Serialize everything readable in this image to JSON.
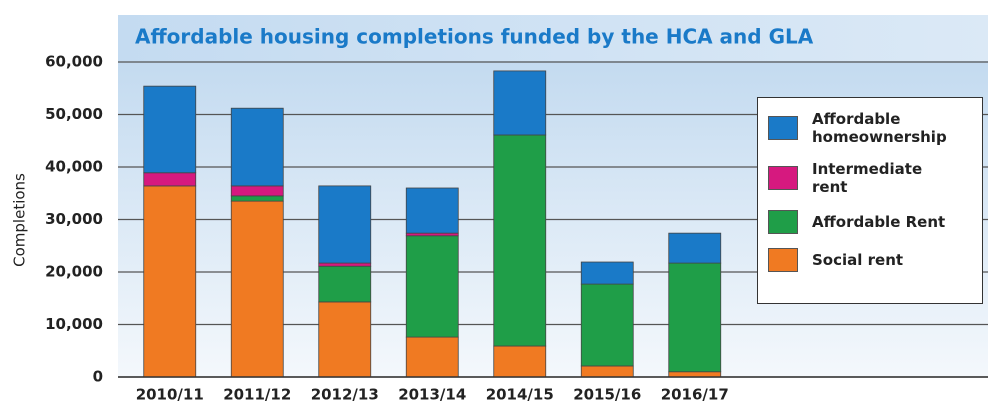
{
  "chart_data": {
    "type": "stacked_bar",
    "title": "Affordable housing completions funded by the HCA and GLA",
    "y_label": "Completions",
    "categories": [
      "2010/11",
      "2011/12",
      "2012/13",
      "2013/14",
      "2014/15",
      "2015/16",
      "2016/17"
    ],
    "series": [
      {
        "name": "Social rent",
        "color": "#f07a22",
        "values": [
          36400,
          33500,
          14300,
          7600,
          5900,
          2100,
          1000
        ]
      },
      {
        "name": "Affordable Rent",
        "color": "#1f9e48",
        "values": [
          0,
          1000,
          6800,
          19300,
          40200,
          15600,
          20700
        ]
      },
      {
        "name": "Intermediate rent",
        "color": "#d6197f",
        "values": [
          2500,
          1900,
          600,
          500,
          0,
          0,
          0
        ]
      },
      {
        "name": "Affordable homeownership",
        "color": "#1a7ac8",
        "values": [
          16500,
          14800,
          14700,
          8600,
          12200,
          4200,
          5700
        ]
      }
    ],
    "ylim": [
      0,
      60000
    ],
    "yticks": [
      0,
      {
        "value": 10000,
        "label": "10,000"
      },
      {
        "value": 20000,
        "label": "20,000"
      },
      {
        "value": 30000,
        "label": "30,000"
      },
      {
        "value": 40000,
        "label": "40,000"
      },
      {
        "value": 50000,
        "label": "50,000"
      },
      {
        "value": 60000,
        "label": "60,000"
      }
    ],
    "grid": true
  }
}
